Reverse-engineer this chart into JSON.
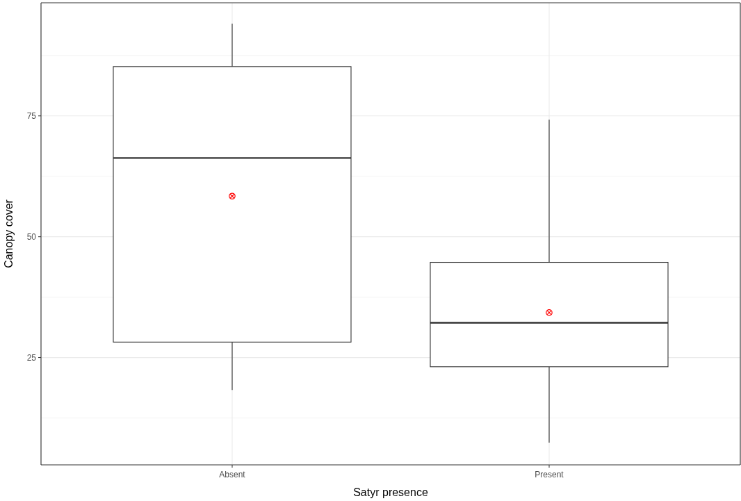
{
  "chart_data": {
    "type": "box",
    "xlabel": "Satyr presence",
    "ylabel": "Canopy cover",
    "categories": [
      "Absent",
      "Present"
    ],
    "boxes": [
      {
        "low": 18.3,
        "q1": 28.2,
        "median": 66.3,
        "q3": 85.2,
        "high": 94.1,
        "mean": 58.4
      },
      {
        "low": 7.4,
        "q1": 23.1,
        "median": 32.2,
        "q3": 44.7,
        "high": 74.2,
        "mean": 34.3
      }
    ],
    "color": "#333333",
    "ylim": [
      2.8,
      98.4
    ],
    "yticks": [
      25,
      50,
      75
    ],
    "grid": true
  }
}
